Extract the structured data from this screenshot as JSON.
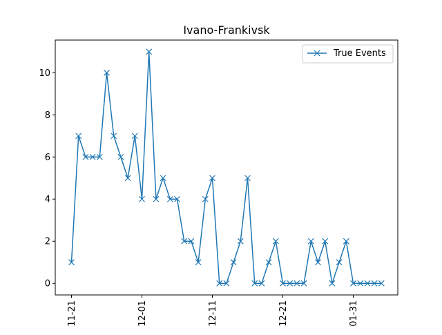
{
  "chart_data": {
    "type": "line",
    "title": "Ivano-Frankivsk",
    "xlabel": "",
    "ylabel": "",
    "x_tick_labels": [
      "11-21",
      "12-01",
      "12-11",
      "12-21",
      "01-31"
    ],
    "y_ticks": [
      0,
      2,
      4,
      6,
      8,
      10
    ],
    "ylim": [
      -0.55,
      11.55
    ],
    "legend_position": "top-right",
    "grid": false,
    "series": [
      {
        "name": "True Events",
        "color": "#1f77b4",
        "marker": "x",
        "values": [
          1,
          7,
          6,
          6,
          6,
          10,
          7,
          6,
          5,
          7,
          4,
          11,
          4,
          5,
          4,
          4,
          2,
          2,
          1,
          4,
          5,
          0,
          0,
          1,
          2,
          5,
          0,
          0,
          1,
          2,
          0,
          0,
          0,
          0,
          2,
          1,
          2,
          0,
          1,
          2,
          0,
          0,
          0,
          0,
          0
        ]
      }
    ]
  }
}
